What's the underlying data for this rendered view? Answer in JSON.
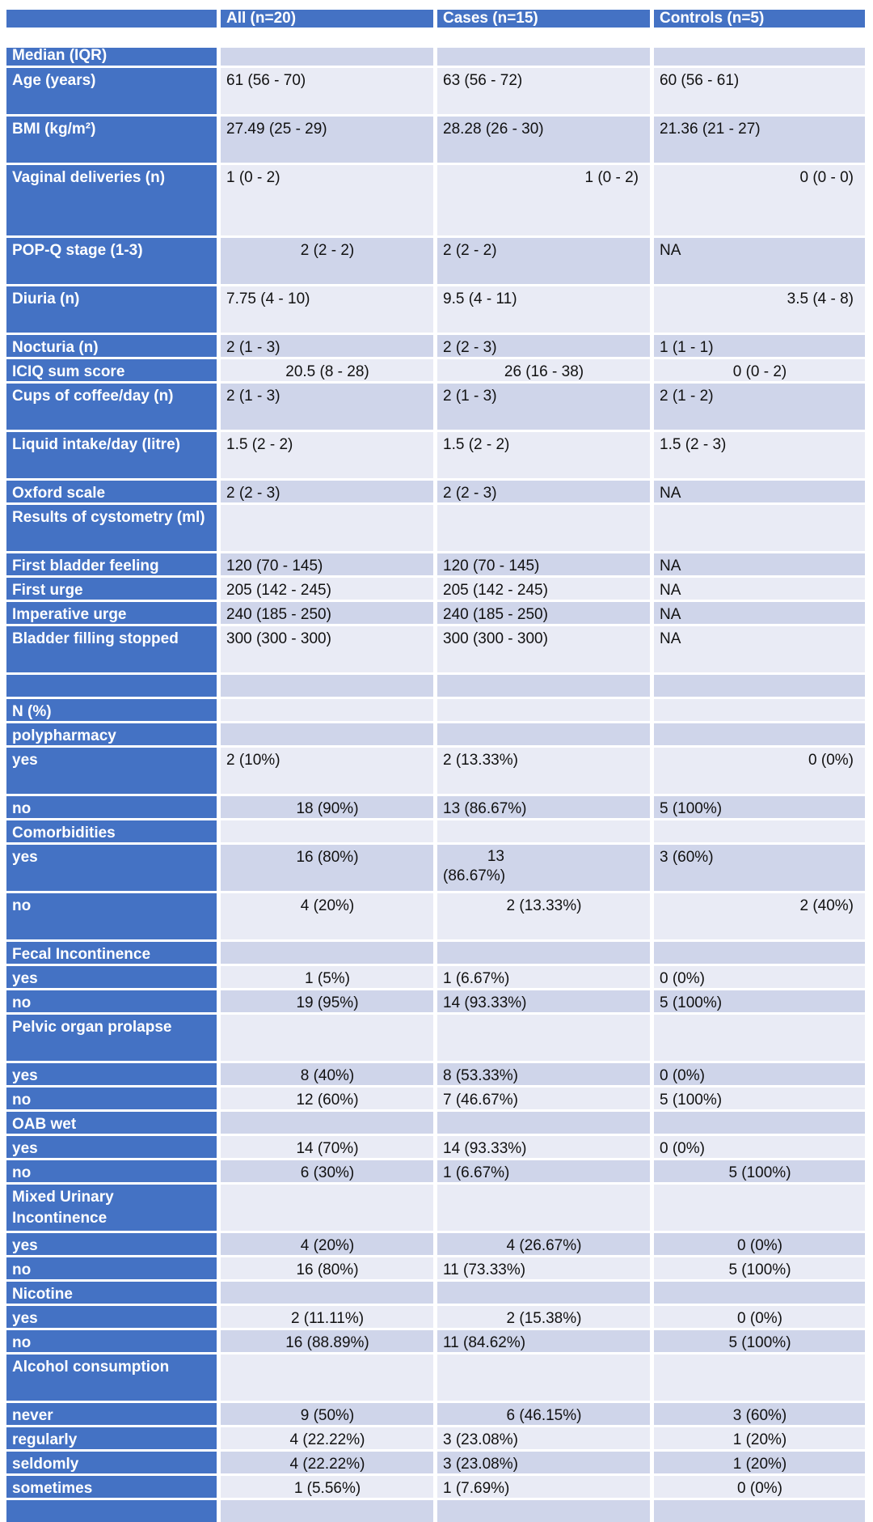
{
  "header": [
    "",
    "All (n=20)",
    "Cases (n=15)",
    "Controls (n=5)"
  ],
  "rows": [
    {
      "label": "Median (IQR)",
      "h": 22,
      "cells": [
        "",
        "",
        ""
      ],
      "align": [
        "l",
        "l",
        "l"
      ]
    },
    {
      "label": "Age (years)",
      "h": 57,
      "cells": [
        "61 (56 - 70)",
        "63 (56 - 72)",
        "60 (56 - 61)"
      ],
      "align": [
        "l",
        "l",
        "l"
      ]
    },
    {
      "label": "BMI (kg/m²)",
      "h": 57,
      "cells": [
        "27.49 (25 - 29)",
        "28.28 (26 - 30)",
        "21.36 (21 - 27)"
      ],
      "align": [
        "l",
        "l",
        "l"
      ]
    },
    {
      "label": "Vaginal deliveries (n)",
      "h": 87,
      "cells": [
        "1 (0 - 2)",
        "1 (0 - 2)",
        "0 (0 - 0)"
      ],
      "align": [
        "l",
        "r",
        "r"
      ]
    },
    {
      "label": "POP-Q stage (1-3)",
      "h": 57,
      "cells": [
        "2 (2 - 2)",
        "2 (2 - 2)",
        "NA"
      ],
      "align": [
        "c",
        "l",
        "l"
      ]
    },
    {
      "label": "Diuria (n)",
      "h": 57,
      "cells": [
        "7.75 (4 - 10)",
        "9.5 (4 - 11)",
        "3.5 (4 - 8)"
      ],
      "align": [
        "l",
        "l",
        "r"
      ]
    },
    {
      "label": "Nocturia (n)",
      "h": 27,
      "cells": [
        "2 (1 - 3)",
        "2 (2 - 3)",
        "1 (1 - 1)"
      ],
      "align": [
        "l",
        "l",
        "l"
      ]
    },
    {
      "label": "ICIQ sum score",
      "h": 27,
      "cells": [
        "20.5 (8 - 28)",
        "26 (16 - 38)",
        "0 (0 - 2)"
      ],
      "align": [
        "c",
        "c",
        "c"
      ]
    },
    {
      "label": "Cups of coffee/day (n)",
      "h": 57,
      "cells": [
        "2 (1 - 3)",
        "2 (1 - 3)",
        "2 (1 - 2)"
      ],
      "align": [
        "l",
        "l",
        "l"
      ]
    },
    {
      "label": "Liquid intake/day (litre)",
      "h": 57,
      "cells": [
        "1.5 (2 - 2)",
        "1.5 (2 - 2)",
        "1.5 (2 - 3)"
      ],
      "align": [
        "l",
        "l",
        "l"
      ]
    },
    {
      "label": "Oxford scale",
      "h": 27,
      "cells": [
        "2 (2 - 3)",
        "2 (2 - 3)",
        "NA"
      ],
      "align": [
        "l",
        "l",
        "l"
      ]
    },
    {
      "label": "Results of cystometry (ml)",
      "h": 57,
      "cells": [
        "",
        "",
        ""
      ],
      "align": [
        "l",
        "l",
        "l"
      ]
    },
    {
      "label": "First bladder feeling",
      "h": 27,
      "cells": [
        "120 (70 - 145)",
        "120 (70 - 145)",
        "NA"
      ],
      "align": [
        "l",
        "l",
        "l"
      ]
    },
    {
      "label": "First urge",
      "h": 27,
      "cells": [
        "205 (142 - 245)",
        "205 (142 - 245)",
        "NA"
      ],
      "align": [
        "l",
        "l",
        "l"
      ]
    },
    {
      "label": "Imperative urge",
      "h": 27,
      "cells": [
        "240 (185 - 250)",
        "240 (185 - 250)",
        "NA"
      ],
      "align": [
        "l",
        "l",
        "l"
      ]
    },
    {
      "label": "Bladder filling stopped",
      "h": 57,
      "cells": [
        "300 (300 - 300)",
        "300 (300 - 300)",
        "NA"
      ],
      "align": [
        "l",
        "l",
        "l"
      ]
    },
    {
      "label": "",
      "h": 27,
      "cells": [
        "",
        "",
        ""
      ],
      "align": [
        "l",
        "l",
        "l"
      ]
    },
    {
      "label": "N (%)",
      "h": 27,
      "cells": [
        "",
        "",
        ""
      ],
      "align": [
        "l",
        "l",
        "l"
      ]
    },
    {
      "label": "polypharmacy",
      "h": 27,
      "cells": [
        "",
        "",
        ""
      ],
      "align": [
        "l",
        "l",
        "l"
      ]
    },
    {
      "label": "yes",
      "h": 57,
      "cells": [
        "2 (10%)",
        "2 (13.33%)",
        "0 (0%)"
      ],
      "align": [
        "l",
        "l",
        "r"
      ]
    },
    {
      "label": "no",
      "h": 27,
      "cells": [
        "18 (90%)",
        "13 (86.67%)",
        "5 (100%)"
      ],
      "align": [
        "c",
        "l",
        "l"
      ]
    },
    {
      "label": "Comorbidities",
      "h": 27,
      "cells": [
        "",
        "",
        ""
      ],
      "align": [
        "l",
        "l",
        "l"
      ]
    },
    {
      "label": "yes",
      "h": 57,
      "cells": [
        "16 (80%)",
        "13 (86.67%)",
        "3 (60%)"
      ],
      "align": [
        "c",
        "wrap",
        "l"
      ]
    },
    {
      "label": "no",
      "h": 57,
      "cells": [
        "4 (20%)",
        "2 (13.33%)",
        "2 (40%)"
      ],
      "align": [
        "c",
        "c",
        "r"
      ]
    },
    {
      "label": "Fecal Incontinence",
      "h": 27,
      "cells": [
        "",
        "",
        ""
      ],
      "align": [
        "l",
        "l",
        "l"
      ]
    },
    {
      "label": "yes",
      "h": 27,
      "cells": [
        "1 (5%)",
        "1 (6.67%)",
        "0 (0%)"
      ],
      "align": [
        "c",
        "l",
        "l"
      ]
    },
    {
      "label": "no",
      "h": 27,
      "cells": [
        "19 (95%)",
        "14 (93.33%)",
        "5 (100%)"
      ],
      "align": [
        "c",
        "l",
        "l"
      ]
    },
    {
      "label": "Pelvic organ prolapse",
      "h": 57,
      "cells": [
        "",
        "",
        ""
      ],
      "align": [
        "l",
        "l",
        "l"
      ]
    },
    {
      "label": "yes",
      "h": 27,
      "cells": [
        "8 (40%)",
        "8 (53.33%)",
        "0 (0%)"
      ],
      "align": [
        "c",
        "l",
        "l"
      ]
    },
    {
      "label": "no",
      "h": 27,
      "cells": [
        "12 (60%)",
        "7 (46.67%)",
        "5 (100%)"
      ],
      "align": [
        "c",
        "l",
        "l"
      ]
    },
    {
      "label": "OAB wet",
      "h": 27,
      "cells": [
        "",
        "",
        ""
      ],
      "align": [
        "l",
        "l",
        "l"
      ]
    },
    {
      "label": "yes",
      "h": 27,
      "cells": [
        "14 (70%)",
        "14 (93.33%)",
        "0 (0%)"
      ],
      "align": [
        "c",
        "l",
        "l"
      ]
    },
    {
      "label": "no",
      "h": 27,
      "cells": [
        "6 (30%)",
        "1 (6.67%)",
        "5 (100%)"
      ],
      "align": [
        "c",
        "l",
        "c"
      ]
    },
    {
      "label": "Mixed Urinary Incontinence",
      "h": 57,
      "cells": [
        "",
        "",
        ""
      ],
      "align": [
        "l",
        "l",
        "l"
      ]
    },
    {
      "label": "yes",
      "h": 27,
      "cells": [
        "4 (20%)",
        "4 (26.67%)",
        "0 (0%)"
      ],
      "align": [
        "c",
        "c",
        "c"
      ]
    },
    {
      "label": "no",
      "h": 27,
      "cells": [
        "16 (80%)",
        "11 (73.33%)",
        "5 (100%)"
      ],
      "align": [
        "c",
        "l",
        "c"
      ]
    },
    {
      "label": "Nicotine",
      "h": 27,
      "cells": [
        "",
        "",
        ""
      ],
      "align": [
        "l",
        "l",
        "l"
      ]
    },
    {
      "label": "yes",
      "h": 27,
      "cells": [
        "2 (11.11%)",
        "2 (15.38%)",
        "0 (0%)"
      ],
      "align": [
        "c",
        "c",
        "c"
      ]
    },
    {
      "label": "no",
      "h": 27,
      "cells": [
        "16 (88.89%)",
        "11 (84.62%)",
        "5 (100%)"
      ],
      "align": [
        "c",
        "l",
        "c"
      ]
    },
    {
      "label": "Alcohol consumption",
      "h": 57,
      "cells": [
        "",
        "",
        ""
      ],
      "align": [
        "l",
        "l",
        "l"
      ]
    },
    {
      "label": "never",
      "h": 27,
      "cells": [
        "9 (50%)",
        "6 (46.15%)",
        "3 (60%)"
      ],
      "align": [
        "c",
        "c",
        "c"
      ]
    },
    {
      "label": "regularly",
      "h": 27,
      "cells": [
        "4 (22.22%)",
        "3 (23.08%)",
        "1 (20%)"
      ],
      "align": [
        "c",
        "l",
        "c"
      ]
    },
    {
      "label": "seldomly",
      "h": 27,
      "cells": [
        "4 (22.22%)",
        "3 (23.08%)",
        "1 (20%)"
      ],
      "align": [
        "c",
        "l",
        "c"
      ]
    },
    {
      "label": "sometimes",
      "h": 27,
      "cells": [
        "1 (5.56%)",
        "1 (7.69%)",
        "0 (0%)"
      ],
      "align": [
        "c",
        "l",
        "c"
      ]
    },
    {
      "label": "",
      "h": 27,
      "cells": [
        "",
        "",
        ""
      ],
      "align": [
        "l",
        "l",
        "l"
      ]
    }
  ]
}
